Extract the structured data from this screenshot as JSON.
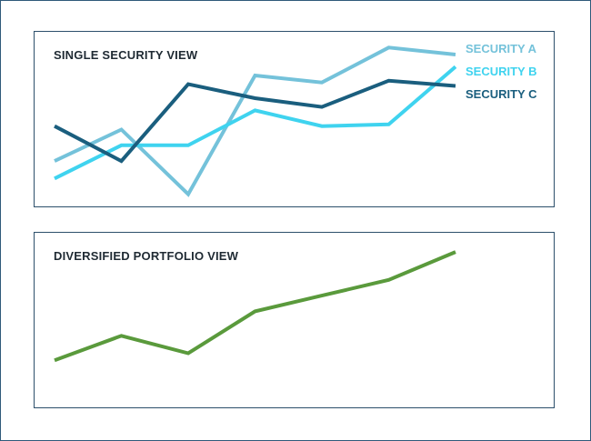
{
  "chart_data": [
    {
      "type": "line",
      "title": "SINGLE SECURITY VIEW",
      "x": [
        1,
        2,
        3,
        4,
        5,
        6,
        7
      ],
      "ylim": [
        0,
        100
      ],
      "grid": false,
      "legend": "top-right",
      "series": [
        {
          "name": "SECURITY A",
          "color": "#74c2da",
          "values": [
            26,
            44,
            7,
            75,
            71,
            91,
            87
          ]
        },
        {
          "name": "SECURITY B",
          "color": "#3fd3ef",
          "values": [
            16,
            35,
            35,
            55,
            46,
            47,
            80
          ]
        },
        {
          "name": "SECURITY C",
          "color": "#1a5e7e",
          "values": [
            46,
            26,
            70,
            62,
            57,
            72,
            69
          ]
        }
      ]
    },
    {
      "type": "line",
      "title": "DIVERSIFIED PORTFOLIO VIEW",
      "x": [
        1,
        2,
        3,
        4,
        5,
        6,
        7
      ],
      "ylim": [
        0,
        100
      ],
      "grid": false,
      "series": [
        {
          "color": "#5a9a3c",
          "values": [
            27,
            41,
            31,
            55,
            64,
            73,
            89
          ]
        }
      ]
    }
  ]
}
